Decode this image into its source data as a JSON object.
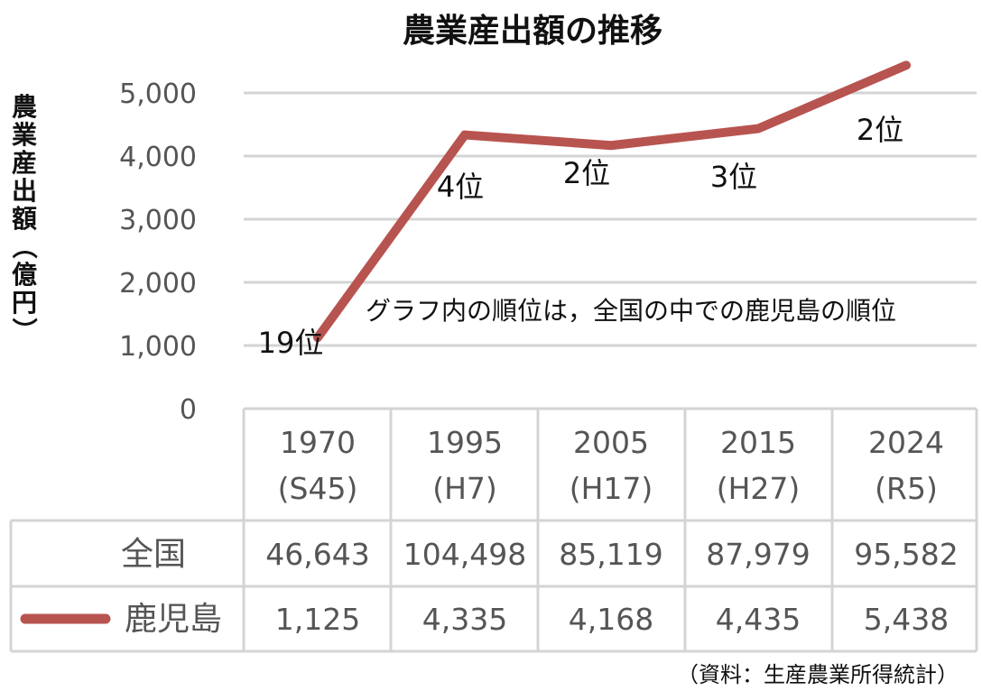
{
  "title": "農業産出額の推移",
  "ylabel": "農業産出額（億円）",
  "ylabel_chars": [
    "農",
    "業",
    "産",
    "出",
    "額",
    "（",
    "億",
    "円",
    "）"
  ],
  "note": "グラフ内の順位は，全国の中での鹿児島の順位",
  "source": "（資料：生産農業所得統計）",
  "colors": {
    "line": "#b85450",
    "grid": "#d4d4d4"
  },
  "chart_data": {
    "type": "line",
    "title": "農業産出額の推移",
    "ylabel": "農業産出額（億円）",
    "ylim": [
      0,
      5000
    ],
    "yticks": [
      "0",
      "1,000",
      "2,000",
      "3,000",
      "4,000",
      "5,000"
    ],
    "grid": true,
    "categories": [
      {
        "year": "1970",
        "era": "(S45)"
      },
      {
        "year": "1995",
        "era": "(H7)"
      },
      {
        "year": "2005",
        "era": "(H17)"
      },
      {
        "year": "2015",
        "era": "(H27)"
      },
      {
        "year": "2024",
        "era": "(R5)"
      }
    ],
    "series": [
      {
        "name": "鹿児島",
        "values": [
          1125,
          4335,
          4168,
          4435,
          5438
        ],
        "display": [
          "1,125",
          "4,335",
          "4,168",
          "4,435",
          "5,438"
        ],
        "plotted": true
      },
      {
        "name": "全国",
        "values": [
          46643,
          104498,
          85119,
          87979,
          95582
        ],
        "display": [
          "46,643",
          "104,498",
          "85,119",
          "87,979",
          "95,582"
        ],
        "plotted": false
      }
    ],
    "rank_labels": [
      "19位",
      "4位",
      "2位",
      "3位",
      "2位"
    ]
  }
}
